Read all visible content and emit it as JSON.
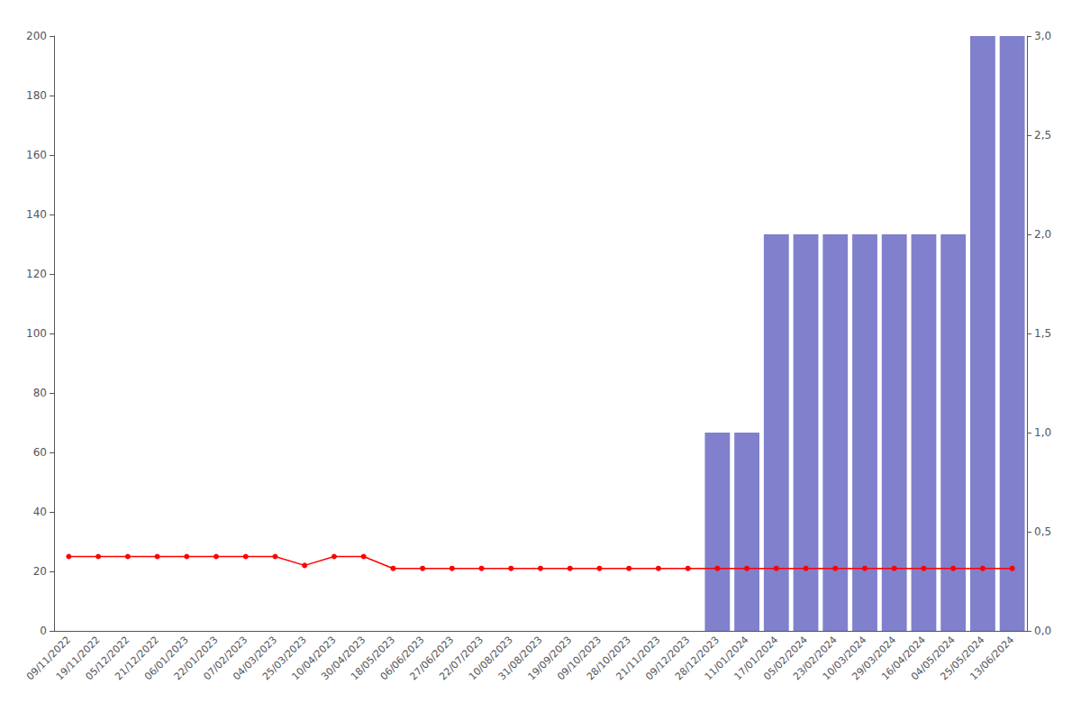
{
  "chart_data": {
    "type": "bar",
    "categories": [
      "09/11/2022",
      "19/11/2022",
      "05/12/2022",
      "21/12/2022",
      "06/01/2023",
      "22/01/2023",
      "07/02/2023",
      "04/03/2023",
      "25/03/2023",
      "10/04/2023",
      "30/04/2023",
      "18/05/2023",
      "06/06/2023",
      "27/06/2023",
      "22/07/2023",
      "10/08/2023",
      "31/08/2023",
      "19/09/2023",
      "09/10/2023",
      "28/10/2023",
      "21/11/2023",
      "09/12/2023",
      "28/12/2023",
      "11/01/2024",
      "17/01/2024",
      "05/02/2024",
      "23/02/2024",
      "10/03/2024",
      "29/03/2024",
      "16/04/2024",
      "04/05/2024",
      "25/05/2024",
      "13/06/2024"
    ],
    "series": [
      {
        "type": "bar",
        "color": "#8080cc",
        "values": [
          0,
          0,
          0,
          0,
          0,
          0,
          0,
          0,
          0,
          0,
          0,
          0,
          0,
          0,
          0,
          0,
          0,
          0,
          0,
          0,
          0,
          0,
          66.67,
          66.67,
          133.33,
          133.33,
          133.33,
          133.33,
          133.33,
          133.33,
          133.33,
          200,
          200
        ]
      },
      {
        "type": "line",
        "color": "#ff0000",
        "marker": "o",
        "values": [
          25,
          25,
          25,
          25,
          25,
          25,
          25,
          25,
          22,
          25,
          25,
          21,
          21,
          21,
          21,
          21,
          21,
          21,
          21,
          21,
          21,
          21,
          21,
          21,
          21,
          21,
          21,
          21,
          21,
          21,
          21,
          21,
          21
        ]
      }
    ],
    "ylim": [
      0,
      200
    ],
    "yticks": [
      0,
      20,
      40,
      60,
      80,
      100,
      120,
      140,
      160,
      180,
      200
    ],
    "y2lim": [
      0,
      3.0
    ],
    "y2ticks": [
      {
        "value": 0,
        "label": "0,0"
      },
      {
        "value": 0.5,
        "label": "0,5"
      },
      {
        "value": 1.0,
        "label": "1,0"
      },
      {
        "value": 1.5,
        "label": "1,5"
      },
      {
        "value": 2.0,
        "label": "2,0"
      },
      {
        "value": 2.5,
        "label": "2,5"
      },
      {
        "value": 3.0,
        "label": "3,0"
      }
    ],
    "grid": false
  }
}
